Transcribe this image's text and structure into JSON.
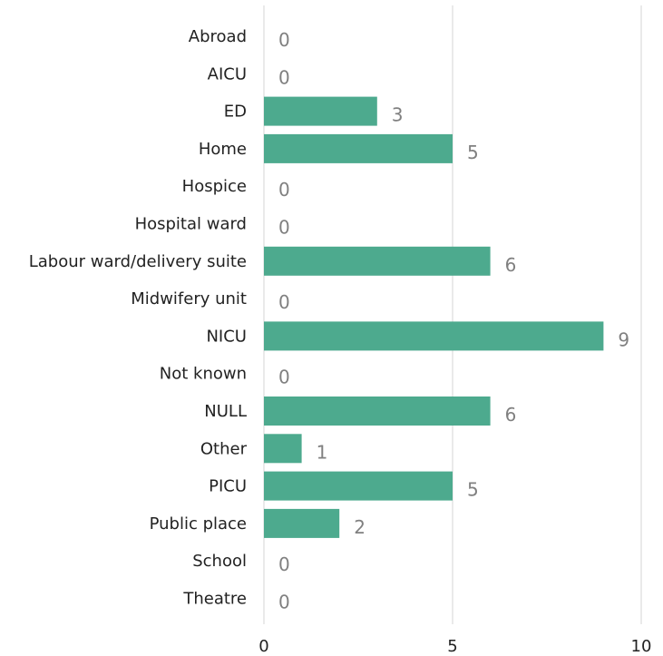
{
  "chart_data": {
    "type": "bar",
    "orientation": "horizontal",
    "categories": [
      "Abroad",
      "AICU",
      "ED",
      "Home",
      "Hospice",
      "Hospital ward",
      "Labour ward/delivery suite",
      "Midwifery unit",
      "NICU",
      "Not known",
      "NULL",
      "Other",
      "PICU",
      "Public place",
      "School",
      "Theatre"
    ],
    "values": [
      0,
      0,
      3,
      5,
      0,
      0,
      6,
      0,
      9,
      0,
      6,
      1,
      5,
      2,
      0,
      0
    ],
    "xlim": [
      0,
      10
    ],
    "xticks": [
      0,
      5,
      10
    ],
    "grid": true,
    "legend": "none",
    "colors": {
      "bar": "#4daa8e",
      "value_label": "#808080",
      "grid": "#e3e3e3",
      "text": "#222222"
    }
  }
}
